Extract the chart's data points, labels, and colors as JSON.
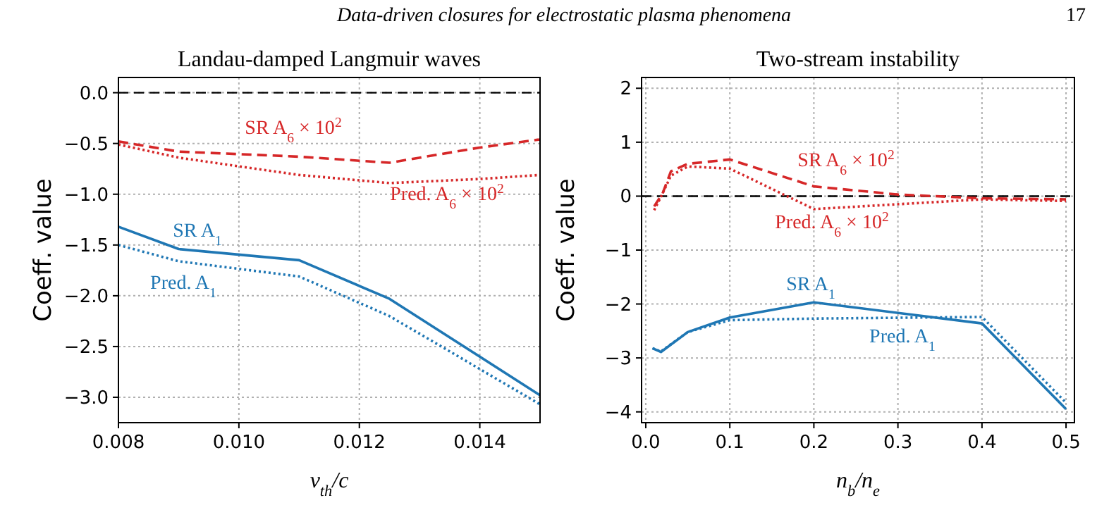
{
  "chart_data": [
    {
      "type": "line",
      "title": "Landau-damped Langmuir waves",
      "xlabel": "v$_{th}$/c",
      "ylabel": "Coeff. value",
      "annotations": [
        "Data-driven closures for electrostatic plasma phenomena",
        "17"
      ],
      "series": [
        {
          "name": "SR A$_{1}$",
          "color": "#1f77b4",
          "line_style": "solid",
          "x": [
            0.008,
            0.009,
            0.011,
            0.0125,
            0.015
          ],
          "values": [
            -1.32,
            -1.54,
            -1.65,
            -2.03,
            -2.98
          ]
        },
        {
          "name": "Pred. A$_{1}$",
          "color": "#1f77b4",
          "line_style": "dotted",
          "x": [
            0.008,
            0.009,
            0.011,
            0.0125,
            0.015
          ],
          "values": [
            -1.5,
            -1.66,
            -1.81,
            -2.2,
            -3.07
          ]
        },
        {
          "name": "SR A$_{6}$ × 10$^{2}$",
          "color": "#d62728",
          "line_style": "dashed",
          "x": [
            0.008,
            0.009,
            0.011,
            0.0125,
            0.014,
            0.015
          ],
          "values": [
            -0.48,
            -0.58,
            -0.63,
            -0.69,
            -0.54,
            -0.46
          ]
        },
        {
          "name": "Pred. A$_{6}$ × 10$^{2}$",
          "color": "#d62728",
          "line_style": "dotted",
          "x": [
            0.008,
            0.009,
            0.011,
            0.0125,
            0.014,
            0.015
          ],
          "values": [
            -0.51,
            -0.64,
            -0.81,
            -0.89,
            -0.85,
            -0.81
          ]
        }
      ],
      "xlim": [
        0.008,
        0.015
      ],
      "xticks": [
        {
          "value": 0.008,
          "label": "0.008"
        },
        {
          "value": 0.01,
          "label": "0.010"
        },
        {
          "value": 0.012,
          "label": "0.012"
        },
        {
          "value": 0.014,
          "label": "0.014"
        }
      ],
      "ylim": [
        -3.25,
        0.15
      ],
      "yticks": [
        {
          "value": 0,
          "label": "0.0"
        },
        {
          "value": -0.5,
          "label": "−0.5"
        },
        {
          "value": -1,
          "label": "−1.0"
        },
        {
          "value": -1.5,
          "label": "−1.5"
        },
        {
          "value": -2,
          "label": "−2.0"
        },
        {
          "value": -2.5,
          "label": "−2.5"
        },
        {
          "value": -3,
          "label": "−3.0"
        }
      ],
      "ref_lines": [
        {
          "axis": "y",
          "value": 0,
          "color": "#000000",
          "line_style": "dashed"
        }
      ],
      "grid": true
    },
    {
      "type": "line",
      "title": "Two-stream instability",
      "xlabel": "n$_{b}$/n$_{e}$",
      "ylabel": "Coeff. value",
      "series": [
        {
          "name": "SR A$_{1}$",
          "color": "#1f77b4",
          "line_style": "solid",
          "x": [
            0.008,
            0.018,
            0.05,
            0.1,
            0.2,
            0.4,
            0.5
          ],
          "values": [
            -2.82,
            -2.89,
            -2.52,
            -2.25,
            -1.97,
            -2.36,
            -3.95
          ]
        },
        {
          "name": "Pred. A$_{1}$",
          "color": "#1f77b4",
          "line_style": "dotted",
          "x": [
            0.008,
            0.018,
            0.05,
            0.1,
            0.2,
            0.4,
            0.5
          ],
          "values": [
            -2.82,
            -2.88,
            -2.52,
            -2.3,
            -2.27,
            -2.24,
            -3.83
          ]
        },
        {
          "name": "SR A$_{6}$ × 10$^{2}$",
          "color": "#d62728",
          "line_style": "dashed",
          "x": [
            0.01,
            0.02,
            0.03,
            0.05,
            0.1,
            0.2,
            0.3,
            0.4,
            0.5
          ],
          "values": [
            -0.19,
            0.05,
            0.46,
            0.6,
            0.68,
            0.18,
            0.03,
            -0.04,
            -0.06
          ]
        },
        {
          "name": "Pred. A$_{6}$ × 10$^{2}$",
          "color": "#d62728",
          "line_style": "dotted",
          "x": [
            0.01,
            0.02,
            0.03,
            0.05,
            0.1,
            0.2,
            0.4,
            0.5
          ],
          "values": [
            -0.26,
            0.05,
            0.38,
            0.55,
            0.51,
            -0.24,
            -0.06,
            -0.09
          ]
        }
      ],
      "xlim": [
        -0.005,
        0.51
      ],
      "xticks": [
        {
          "value": 0,
          "label": "0.0"
        },
        {
          "value": 0.1,
          "label": "0.1"
        },
        {
          "value": 0.2,
          "label": "0.2"
        },
        {
          "value": 0.3,
          "label": "0.3"
        },
        {
          "value": 0.4,
          "label": "0.4"
        },
        {
          "value": 0.5,
          "label": "0.5"
        }
      ],
      "ylim": [
        -4.2,
        2.2
      ],
      "yticks": [
        {
          "value": 2,
          "label": "2"
        },
        {
          "value": 1,
          "label": "1"
        },
        {
          "value": 0,
          "label": "0"
        },
        {
          "value": -1,
          "label": "−1"
        },
        {
          "value": -2,
          "label": "−2"
        },
        {
          "value": -3,
          "label": "−3"
        },
        {
          "value": -4,
          "label": "−4"
        }
      ],
      "ref_lines": [
        {
          "axis": "y",
          "value": 0,
          "color": "#000000",
          "line_style": "dashed"
        }
      ],
      "grid": true
    }
  ]
}
